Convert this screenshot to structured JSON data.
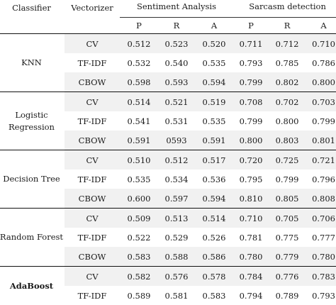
{
  "headers": {
    "classifier": "Classifier",
    "vectorizer": "Vectorizer",
    "group1": "Sentiment Analysis",
    "group2": "Sarcasm detection",
    "cols": [
      "P",
      "R",
      "A",
      "P",
      "R",
      "A"
    ]
  },
  "groups": [
    {
      "classifier_lines": [
        "KNN"
      ],
      "bold": false,
      "rows": [
        {
          "vec": "CV",
          "vals": [
            "0.512",
            "0.523",
            "0.520",
            "0.711",
            "0.712",
            "0.710"
          ]
        },
        {
          "vec": "TF-IDF",
          "vals": [
            "0.532",
            "0.540",
            "0.535",
            "0.793",
            "0.785",
            "0.786"
          ]
        },
        {
          "vec": "CBOW",
          "vals": [
            "0.598",
            "0.593",
            "0.594",
            "0.799",
            "0.802",
            "0.800"
          ]
        }
      ]
    },
    {
      "classifier_lines": [
        "Logistic",
        "Regression"
      ],
      "bold": false,
      "rows": [
        {
          "vec": "CV",
          "vals": [
            "0.514",
            "0.521",
            "0.519",
            "0.708",
            "0.702",
            "0.703"
          ]
        },
        {
          "vec": "TF-IDF",
          "vals": [
            "0.541",
            "0.531",
            "0.535",
            "0.799",
            "0.800",
            "0.799"
          ]
        },
        {
          "vec": "CBOW",
          "vals": [
            "0.591",
            "0593",
            "0.591",
            "0.800",
            "0.803",
            "0.801"
          ]
        }
      ]
    },
    {
      "classifier_lines": [
        "Decision Tree"
      ],
      "bold": false,
      "rows": [
        {
          "vec": "CV",
          "vals": [
            "0.510",
            "0.512",
            "0.517",
            "0.720",
            "0.725",
            "0.721"
          ]
        },
        {
          "vec": "TF-IDF",
          "vals": [
            "0.535",
            "0.534",
            "0.536",
            "0.795",
            "0.799",
            "0.796"
          ]
        },
        {
          "vec": "CBOW",
          "vals": [
            "0.600",
            "0.597",
            "0.594",
            "0.810",
            "0.805",
            "0.808"
          ]
        }
      ]
    },
    {
      "classifier_lines": [
        "Random Forest"
      ],
      "bold": false,
      "rows": [
        {
          "vec": "CV",
          "vals": [
            "0.509",
            "0.513",
            "0.514",
            "0.710",
            "0.705",
            "0.706"
          ]
        },
        {
          "vec": "TF-IDF",
          "vals": [
            "0.522",
            "0.529",
            "0.526",
            "0.781",
            "0.775",
            "0.777"
          ]
        },
        {
          "vec": "CBOW",
          "vals": [
            "0.583",
            "0.588",
            "0.586",
            "0.780",
            "0.779",
            "0.780"
          ]
        }
      ]
    },
    {
      "classifier_lines": [
        "AdaBoost"
      ],
      "bold": true,
      "rows": [
        {
          "vec": "CV",
          "vals": [
            "0.582",
            "0.576",
            "0.578",
            "0.784",
            "0.776",
            "0.783"
          ]
        },
        {
          "vec": "TF-IDF",
          "vals": [
            "0.589",
            "0.581",
            "0.583",
            "0.794",
            "0.789",
            "0.793"
          ]
        }
      ]
    }
  ]
}
